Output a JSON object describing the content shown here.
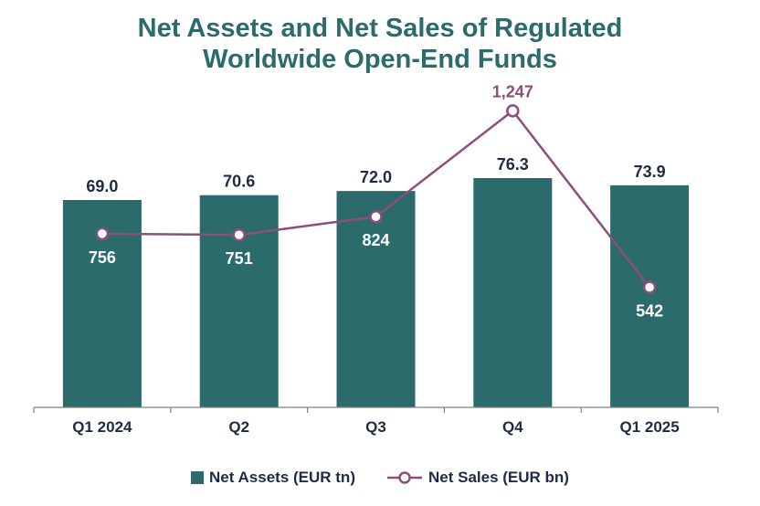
{
  "title_line1": "Net Assets and Net Sales of Regulated",
  "title_line2": "Worldwide Open-End Funds",
  "colors": {
    "title": "#2b6b6b",
    "bar": "#2b6b6b",
    "line": "#8b4f7b",
    "text": "#1f2a44",
    "axis": "#808080"
  },
  "chart_data": {
    "type": "bar",
    "title": "Net Assets and Net Sales of Regulated Worldwide Open-End Funds",
    "categories": [
      "Q1 2024",
      "Q2",
      "Q3",
      "Q4",
      "Q1 2025"
    ],
    "series": [
      {
        "name": "Net Assets (EUR tn)",
        "type": "bar",
        "values": [
          69.0,
          70.6,
          72.0,
          76.3,
          73.9
        ],
        "labels": [
          "69.0",
          "70.6",
          "72.0",
          "76.3",
          "73.9"
        ]
      },
      {
        "name": "Net Sales (EUR bn)",
        "type": "line",
        "values": [
          756,
          751,
          824,
          1247,
          542
        ],
        "labels": [
          "756",
          "751",
          "824",
          "1,247",
          "542"
        ]
      }
    ],
    "grid": false,
    "legend_position": "bottom"
  }
}
